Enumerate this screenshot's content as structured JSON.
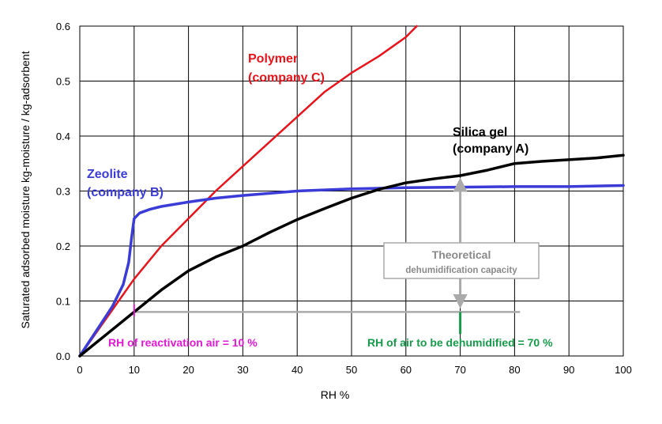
{
  "chart_data": {
    "type": "line",
    "xlabel": "RH %",
    "ylabel": "Saturated adsorbed moisture  kg-moisture / kg-adsorbent",
    "xlim": [
      0,
      100
    ],
    "ylim": [
      0,
      0.6
    ],
    "xticks": [
      0,
      10,
      20,
      30,
      40,
      50,
      60,
      70,
      80,
      90,
      100
    ],
    "yticks": [
      0.0,
      0.1,
      0.2,
      0.3,
      0.4,
      0.5,
      0.6
    ],
    "xtick_labels": [
      "0",
      "10",
      "20",
      "30",
      "40",
      "50",
      "60",
      "70",
      "80",
      "90",
      "100"
    ],
    "ytick_labels": [
      "0.0",
      "0.1",
      "0.2",
      "0.3",
      "0.4",
      "0.5",
      "0.6"
    ],
    "grid": true,
    "series": [
      {
        "name_line1": "Polymer",
        "name_line2": "(company C)",
        "color": "#e8141c",
        "x": [
          0,
          5,
          10,
          15,
          20,
          25,
          30,
          35,
          40,
          45,
          50,
          55,
          60,
          62
        ],
        "y": [
          0,
          0.07,
          0.14,
          0.2,
          0.25,
          0.3,
          0.345,
          0.39,
          0.435,
          0.48,
          0.515,
          0.545,
          0.58,
          0.6
        ]
      },
      {
        "name_line1": "Zeolite",
        "name_line2": "(company B)",
        "color": "#3b3bd8",
        "x": [
          0,
          2,
          4,
          6,
          8,
          9,
          9.6,
          10,
          11,
          13,
          15,
          20,
          25,
          30,
          40,
          50,
          60,
          70,
          80,
          90,
          100
        ],
        "y": [
          0,
          0.03,
          0.06,
          0.09,
          0.13,
          0.17,
          0.22,
          0.25,
          0.26,
          0.267,
          0.272,
          0.28,
          0.287,
          0.292,
          0.3,
          0.304,
          0.306,
          0.307,
          0.308,
          0.308,
          0.31
        ]
      },
      {
        "name_line1": "Silica gel",
        "name_line2": "(company A)",
        "color": "#000000",
        "x": [
          0,
          5,
          10,
          15,
          20,
          25,
          30,
          35,
          40,
          45,
          50,
          55,
          60,
          65,
          70,
          75,
          80,
          85,
          90,
          95,
          100
        ],
        "y": [
          0,
          0.04,
          0.08,
          0.12,
          0.155,
          0.18,
          0.2,
          0.225,
          0.248,
          0.268,
          0.287,
          0.303,
          0.315,
          0.322,
          0.328,
          0.338,
          0.35,
          0.354,
          0.357,
          0.36,
          0.365
        ]
      }
    ],
    "annotations": {
      "reactivation": {
        "text": "RH of reactivation air = 10 %",
        "color": "#e01ad2",
        "x": 10,
        "y_range": [
          0.072,
          0.094
        ]
      },
      "dehumidified": {
        "text": "RH of air to be dehumidified = 70 %",
        "color": "#179a4a",
        "x": 70,
        "y_range": [
          0.04,
          0.08
        ]
      },
      "reference_line": {
        "color": "#aaaaaa",
        "x_range": [
          10,
          81
        ],
        "y": 0.08
      },
      "capacity_arrow": {
        "color": "#aaaaaa",
        "x": 70,
        "from_y": 0.08,
        "to_y": 0.328
      },
      "theoretical_box": {
        "line1": "Theoretical",
        "line2": "dehumidification capacity",
        "border_color": "#aaaaaa",
        "text_color": "#8a8a8a"
      }
    }
  }
}
